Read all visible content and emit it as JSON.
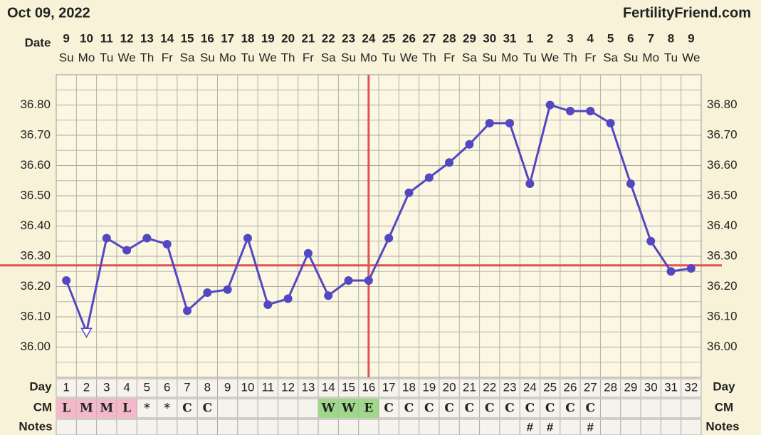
{
  "header": {
    "date": "Oct 09, 2022",
    "site": "FertilityFriend.com"
  },
  "chart_data": {
    "type": "line",
    "row_labels": {
      "date": "Date",
      "day": "Day",
      "cm": "CM",
      "notes": "Notes"
    },
    "x": [
      1,
      2,
      3,
      4,
      5,
      6,
      7,
      8,
      9,
      10,
      11,
      12,
      13,
      14,
      15,
      16,
      17,
      18,
      19,
      20,
      21,
      22,
      23,
      24,
      25,
      26,
      27,
      28,
      29,
      30,
      31,
      32
    ],
    "dates": [
      "9",
      "10",
      "11",
      "12",
      "13",
      "14",
      "15",
      "16",
      "17",
      "18",
      "19",
      "20",
      "21",
      "22",
      "23",
      "24",
      "25",
      "26",
      "27",
      "28",
      "29",
      "30",
      "31",
      "1",
      "2",
      "3",
      "4",
      "5",
      "6",
      "7",
      "8",
      "9"
    ],
    "weekdays": [
      "Su",
      "Mo",
      "Tu",
      "We",
      "Th",
      "Fr",
      "Sa",
      "Su",
      "Mo",
      "Tu",
      "We",
      "Th",
      "Fr",
      "Sa",
      "Su",
      "Mo",
      "Tu",
      "We",
      "Th",
      "Fr",
      "Sa",
      "Su",
      "Mo",
      "Tu",
      "We",
      "Th",
      "Fr",
      "Sa",
      "Su",
      "Mo",
      "Tu",
      "We"
    ],
    "values": [
      36.22,
      36.05,
      36.36,
      36.32,
      36.36,
      36.34,
      36.12,
      36.18,
      36.19,
      36.36,
      36.14,
      36.16,
      36.31,
      36.17,
      36.22,
      36.22,
      36.36,
      36.51,
      36.56,
      36.61,
      36.67,
      36.74,
      36.74,
      36.54,
      36.8,
      36.78,
      36.78,
      36.74,
      36.54,
      36.35,
      36.25,
      36.26
    ],
    "discarded": [
      2
    ],
    "color": "#5447c2",
    "ylim": [
      35.9,
      36.9
    ],
    "yticks": [
      {
        "value": 36.0,
        "label": "36.00"
      },
      {
        "value": 36.1,
        "label": "36.10"
      },
      {
        "value": 36.2,
        "label": "36.20"
      },
      {
        "value": 36.3,
        "label": "36.30"
      },
      {
        "value": 36.4,
        "label": "36.40"
      },
      {
        "value": 36.5,
        "label": "36.50"
      },
      {
        "value": 36.6,
        "label": "36.60"
      },
      {
        "value": 36.7,
        "label": "36.70"
      },
      {
        "value": 36.8,
        "label": "36.80"
      }
    ],
    "grid": true,
    "coverline": 36.27,
    "ovulation_day": 16,
    "line_color": "#e05252",
    "cm": [
      "L",
      "M",
      "M",
      "L",
      "*",
      "*",
      "C",
      "C",
      null,
      null,
      null,
      null,
      null,
      "W",
      "W",
      "E",
      "C",
      "C",
      "C",
      "C",
      "C",
      "C",
      "C",
      "C",
      "C",
      "C",
      "C",
      null,
      null,
      null,
      null,
      null
    ],
    "cm_fill": [
      "#f2b9cb",
      "#f2b9cb",
      "#f2b9cb",
      "#f2b9cb",
      null,
      null,
      null,
      null,
      null,
      null,
      null,
      null,
      null,
      "#9fd88a",
      "#9fd88a",
      "#9fd88a",
      null,
      null,
      null,
      null,
      null,
      null,
      null,
      null,
      null,
      null,
      null,
      null,
      null,
      null,
      null,
      null
    ],
    "notes": [
      null,
      null,
      null,
      null,
      null,
      null,
      null,
      null,
      null,
      null,
      null,
      null,
      null,
      null,
      null,
      null,
      null,
      null,
      null,
      null,
      null,
      null,
      null,
      "#",
      "#",
      null,
      "#",
      null,
      null,
      null,
      null,
      null
    ]
  }
}
